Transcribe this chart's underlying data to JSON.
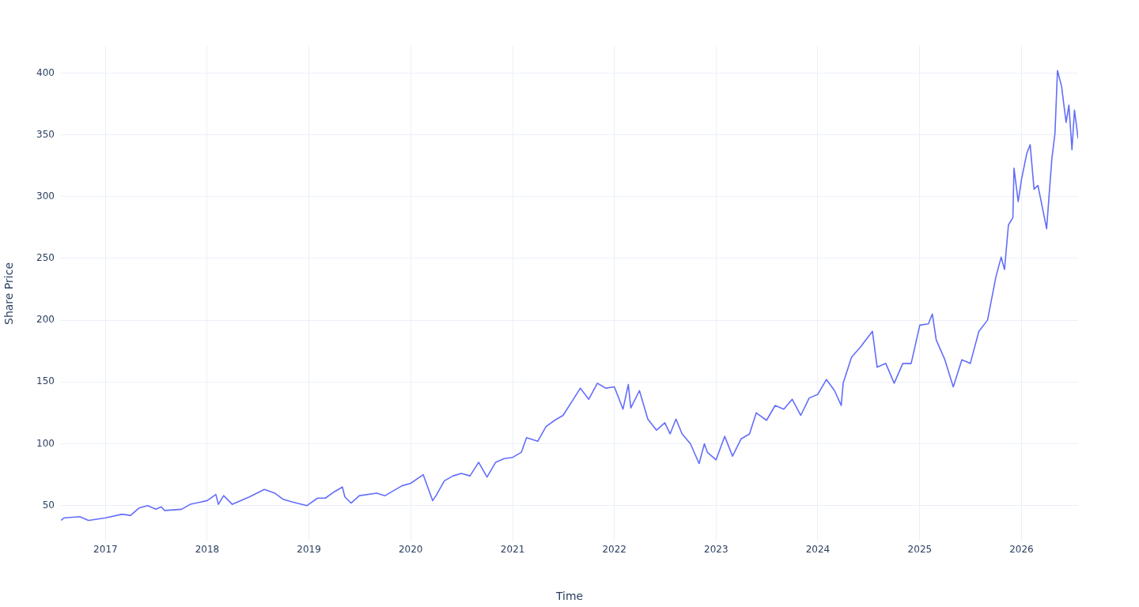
{
  "chart_data": {
    "type": "line",
    "xlabel": "Time",
    "ylabel": "Share Price",
    "grid": true,
    "legend": false,
    "marker": "none",
    "line_style": "solid",
    "xlim": [
      "2016-07-25",
      "2026-07-23"
    ],
    "xticks": [
      "2017",
      "2018",
      "2019",
      "2020",
      "2021",
      "2022",
      "2023",
      "2024",
      "2025",
      "2026"
    ],
    "ylim": [
      21,
      422
    ],
    "yticks": [
      50,
      100,
      150,
      200,
      250,
      300,
      350,
      400
    ],
    "series": [
      {
        "color": "#636efa",
        "x": [
          "2016-07-25",
          "2016-08-05",
          "2016-10-01",
          "2016-11-01",
          "2017-01-01",
          "2017-03-01",
          "2017-04-01",
          "2017-05-01",
          "2017-06-01",
          "2017-07-01",
          "2017-07-20",
          "2017-08-01",
          "2017-10-01",
          "2017-11-01",
          "2018-01-01",
          "2018-02-01",
          "2018-02-10",
          "2018-03-01",
          "2018-04-01",
          "2018-05-01",
          "2018-06-01",
          "2018-07-25",
          "2018-09-01",
          "2018-10-01",
          "2018-11-01",
          "2018-12-25",
          "2019-02-01",
          "2019-03-01",
          "2019-04-01",
          "2019-05-01",
          "2019-05-10",
          "2019-06-01",
          "2019-07-01",
          "2019-09-01",
          "2019-10-01",
          "2019-12-01",
          "2020-01-01",
          "2020-02-15",
          "2020-03-20",
          "2020-04-01",
          "2020-05-01",
          "2020-06-01",
          "2020-07-01",
          "2020-08-01",
          "2020-09-01",
          "2020-10-01",
          "2020-11-01",
          "2020-12-01",
          "2021-01-01",
          "2021-02-01",
          "2021-02-20",
          "2021-04-01",
          "2021-05-01",
          "2021-06-01",
          "2021-07-01",
          "2021-08-01",
          "2021-09-01",
          "2021-10-01",
          "2021-11-01",
          "2021-12-01",
          "2022-01-01",
          "2022-02-01",
          "2022-02-20",
          "2022-03-01",
          "2022-04-01",
          "2022-05-01",
          "2022-06-01",
          "2022-07-01",
          "2022-07-20",
          "2022-08-10",
          "2022-09-01",
          "2022-10-01",
          "2022-11-01",
          "2022-11-20",
          "2022-12-01",
          "2023-01-01",
          "2023-02-01",
          "2023-03-01",
          "2023-04-01",
          "2023-05-01",
          "2023-05-25",
          "2023-07-01",
          "2023-08-01",
          "2023-09-01",
          "2023-10-01",
          "2023-11-01",
          "2023-12-01",
          "2024-01-01",
          "2024-02-01",
          "2024-03-01",
          "2024-03-25",
          "2024-04-01",
          "2024-05-01",
          "2024-06-01",
          "2024-07-15",
          "2024-08-01",
          "2024-09-01",
          "2024-10-01",
          "2024-11-01",
          "2024-12-01",
          "2025-01-01",
          "2025-02-01",
          "2025-02-15",
          "2025-03-01",
          "2025-04-01",
          "2025-05-01",
          "2025-06-01",
          "2025-07-01",
          "2025-08-01",
          "2025-09-01",
          "2025-10-01",
          "2025-10-20",
          "2025-11-01",
          "2025-11-15",
          "2025-12-01",
          "2025-12-05",
          "2025-12-20",
          "2026-01-01",
          "2026-01-20",
          "2026-02-01",
          "2026-02-15",
          "2026-03-01",
          "2026-04-01",
          "2026-04-20",
          "2026-05-01",
          "2026-05-10",
          "2026-05-25",
          "2026-06-01",
          "2026-06-10",
          "2026-06-20",
          "2026-07-01",
          "2026-07-10",
          "2026-07-23"
        ],
        "values": [
          38,
          40,
          41,
          38,
          40,
          43,
          42,
          48,
          50,
          47,
          49,
          46,
          47,
          51,
          54,
          59,
          51,
          58,
          51,
          54,
          57,
          63,
          60,
          55,
          53,
          50,
          56,
          56,
          61,
          65,
          57,
          52,
          58,
          60,
          58,
          66,
          68,
          75,
          54,
          58,
          70,
          74,
          76,
          74,
          85,
          73,
          85,
          88,
          89,
          93,
          105,
          102,
          114,
          119,
          123,
          134,
          145,
          136,
          149,
          145,
          146,
          128,
          148,
          129,
          143,
          120,
          111,
          117,
          108,
          120,
          108,
          100,
          84,
          100,
          93,
          87,
          106,
          90,
          104,
          108,
          125,
          119,
          131,
          128,
          136,
          123,
          137,
          140,
          152,
          143,
          131,
          149,
          170,
          178,
          191,
          162,
          165,
          149,
          165,
          165,
          196,
          197,
          205,
          184,
          168,
          146,
          168,
          165,
          191,
          200,
          235,
          251,
          241,
          277,
          283,
          323,
          296,
          314,
          335,
          342,
          306,
          309,
          274,
          331,
          351,
          402,
          389,
          376,
          360,
          374,
          338,
          370,
          347
        ]
      }
    ]
  }
}
